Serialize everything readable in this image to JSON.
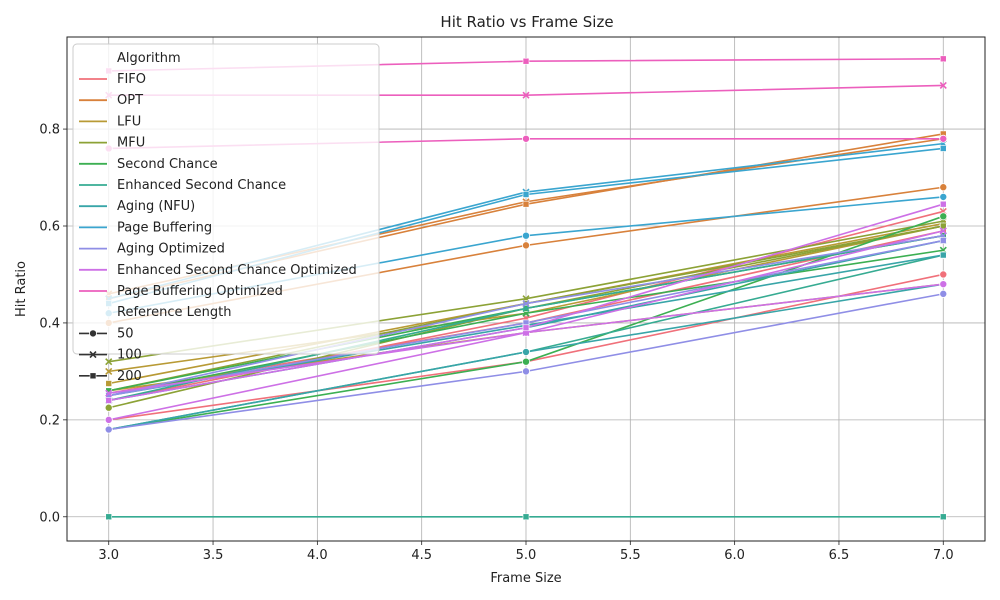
{
  "chart_data": {
    "type": "line",
    "title": "Hit Ratio vs Frame Size",
    "xlabel": "Frame Size",
    "ylabel": "Hit Ratio",
    "xlim": [
      2.8,
      7.2
    ],
    "ylim": [
      -0.05,
      0.99
    ],
    "xticks": [
      "3.0",
      "3.5",
      "4.0",
      "4.5",
      "5.0",
      "5.5",
      "6.0",
      "6.5",
      "7.0"
    ],
    "yticks": [
      "0.0",
      "0.2",
      "0.4",
      "0.6",
      "0.8"
    ],
    "grid": true,
    "legend_position": "upper-left",
    "legend_hue_title": "Algorithm",
    "legend_style_title": "Reference Length",
    "x": [
      3,
      5,
      7
    ],
    "algorithms": [
      {
        "name": "FIFO",
        "color": "#f0707a"
      },
      {
        "name": "OPT",
        "color": "#d8813b"
      },
      {
        "name": "LFU",
        "color": "#b89a35"
      },
      {
        "name": "MFU",
        "color": "#8ca236"
      },
      {
        "name": "Second Chance",
        "color": "#3caf52"
      },
      {
        "name": "Enhanced Second Chance",
        "color": "#36ab92"
      },
      {
        "name": "Aging (NFU)",
        "color": "#38a5a8"
      },
      {
        "name": "Page Buffering",
        "color": "#3aa5cf"
      },
      {
        "name": "Aging Optimized",
        "color": "#8f8ee6"
      },
      {
        "name": "Enhanced Second Chance Optimized",
        "color": "#cd70e6"
      },
      {
        "name": "Page Buffering Optimized",
        "color": "#ec5fbd"
      }
    ],
    "reference_lengths": [
      {
        "label": "50",
        "marker": "circle"
      },
      {
        "label": "100",
        "marker": "x"
      },
      {
        "label": "200",
        "marker": "square"
      }
    ],
    "series": [
      {
        "algorithm": "FIFO",
        "ref": "50",
        "values": [
          0.2,
          0.32,
          0.5
        ]
      },
      {
        "algorithm": "FIFO",
        "ref": "100",
        "values": [
          0.24,
          0.41,
          0.63
        ]
      },
      {
        "algorithm": "FIFO",
        "ref": "200",
        "values": [
          0.255,
          0.4,
          0.59
        ]
      },
      {
        "algorithm": "OPT",
        "ref": "50",
        "values": [
          0.4,
          0.56,
          0.68
        ]
      },
      {
        "algorithm": "OPT",
        "ref": "100",
        "values": [
          0.46,
          0.65,
          0.78
        ]
      },
      {
        "algorithm": "OPT",
        "ref": "200",
        "values": [
          0.45,
          0.645,
          0.79
        ]
      },
      {
        "algorithm": "LFU",
        "ref": "50",
        "values": [
          0.26,
          0.38,
          0.48
        ]
      },
      {
        "algorithm": "LFU",
        "ref": "100",
        "values": [
          0.3,
          0.42,
          0.6
        ]
      },
      {
        "algorithm": "LFU",
        "ref": "200",
        "values": [
          0.275,
          0.44,
          0.605
        ]
      },
      {
        "algorithm": "MFU",
        "ref": "50",
        "values": [
          0.225,
          0.43,
          0.6
        ]
      },
      {
        "algorithm": "MFU",
        "ref": "100",
        "values": [
          0.32,
          0.45,
          0.61
        ]
      },
      {
        "algorithm": "MFU",
        "ref": "200",
        "values": [
          0.26,
          0.44,
          0.6
        ]
      },
      {
        "algorithm": "Second Chance",
        "ref": "50",
        "values": [
          0.18,
          0.32,
          0.62
        ]
      },
      {
        "algorithm": "Second Chance",
        "ref": "100",
        "values": [
          0.25,
          0.42,
          0.55
        ]
      },
      {
        "algorithm": "Second Chance",
        "ref": "200",
        "values": [
          0.26,
          0.43,
          0.58
        ]
      },
      {
        "algorithm": "Enhanced Second Chance",
        "ref": "50",
        "values": [
          0.18,
          0.34,
          0.54
        ]
      },
      {
        "algorithm": "Enhanced Second Chance",
        "ref": "100",
        "values": [
          0.24,
          0.43,
          0.58
        ]
      },
      {
        "algorithm": "Enhanced Second Chance",
        "ref": "200",
        "values": [
          0.0,
          0.0,
          0.0
        ]
      },
      {
        "algorithm": "Aging (NFU)",
        "ref": "50",
        "values": [
          0.18,
          0.34,
          0.48
        ]
      },
      {
        "algorithm": "Aging (NFU)",
        "ref": "100",
        "values": [
          0.24,
          0.39,
          0.57
        ]
      },
      {
        "algorithm": "Aging (NFU)",
        "ref": "200",
        "values": [
          0.25,
          0.395,
          0.54
        ]
      },
      {
        "algorithm": "Page Buffering",
        "ref": "50",
        "values": [
          0.42,
          0.58,
          0.66
        ]
      },
      {
        "algorithm": "Page Buffering",
        "ref": "100",
        "values": [
          0.45,
          0.67,
          0.77
        ]
      },
      {
        "algorithm": "Page Buffering",
        "ref": "200",
        "values": [
          0.44,
          0.665,
          0.76
        ]
      },
      {
        "algorithm": "Aging Optimized",
        "ref": "50",
        "values": [
          0.18,
          0.3,
          0.46
        ]
      },
      {
        "algorithm": "Aging Optimized",
        "ref": "100",
        "values": [
          0.25,
          0.44,
          0.58
        ]
      },
      {
        "algorithm": "Aging Optimized",
        "ref": "200",
        "values": [
          0.25,
          0.4,
          0.57
        ]
      },
      {
        "algorithm": "Enhanced Second Chance Optimized",
        "ref": "50",
        "values": [
          0.2,
          0.38,
          0.48
        ]
      },
      {
        "algorithm": "Enhanced Second Chance Optimized",
        "ref": "100",
        "values": [
          0.255,
          0.38,
          0.59
        ]
      },
      {
        "algorithm": "Enhanced Second Chance Optimized",
        "ref": "200",
        "values": [
          0.24,
          0.39,
          0.645
        ]
      },
      {
        "algorithm": "Page Buffering Optimized",
        "ref": "50",
        "values": [
          0.76,
          0.78,
          0.78
        ]
      },
      {
        "algorithm": "Page Buffering Optimized",
        "ref": "100",
        "values": [
          0.87,
          0.87,
          0.89
        ]
      },
      {
        "algorithm": "Page Buffering Optimized",
        "ref": "200",
        "values": [
          0.92,
          0.94,
          0.945
        ]
      }
    ]
  }
}
